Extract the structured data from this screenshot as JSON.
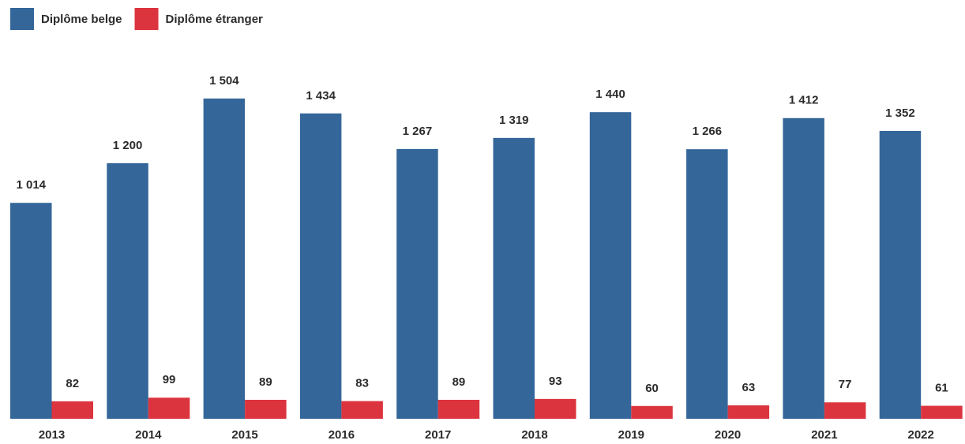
{
  "chart_data": {
    "type": "bar",
    "categories": [
      "2013",
      "2014",
      "2015",
      "2016",
      "2017",
      "2018",
      "2019",
      "2020",
      "2021",
      "2022"
    ],
    "series": [
      {
        "name": "Diplôme belge",
        "color": "#34669a",
        "values": [
          1014,
          1200,
          1504,
          1434,
          1267,
          1319,
          1440,
          1266,
          1412,
          1352
        ],
        "value_labels": [
          "1 014",
          "1 200",
          "1 504",
          "1 434",
          "1 267",
          "1 319",
          "1 440",
          "1 266",
          "1 412",
          "1 352"
        ]
      },
      {
        "name": "Diplôme étranger",
        "color": "#dc343e",
        "values": [
          82,
          99,
          89,
          83,
          89,
          93,
          60,
          63,
          77,
          61
        ]
      }
    ],
    "legend": "top-left"
  }
}
